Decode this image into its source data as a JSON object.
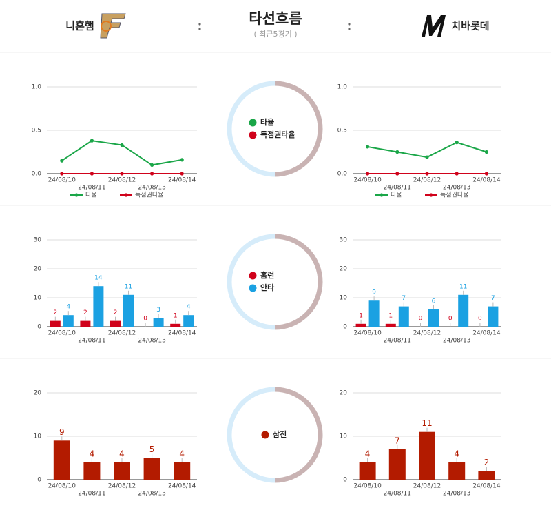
{
  "header": {
    "home": "니혼햄",
    "title": "타선흐름",
    "subtitle": "( 최근5경기 )",
    "away": "치바롯데"
  },
  "chart_data": [
    {
      "type": "line",
      "categories": [
        "24/08/10",
        "24/08/11",
        "24/08/12",
        "24/08/13",
        "24/08/14"
      ],
      "series": [
        {
          "name": "타율",
          "color": "#1aa648",
          "values": [
            0.15,
            0.38,
            0.33,
            0.1,
            0.16
          ]
        },
        {
          "name": "득점권타율",
          "color": "#d0021b",
          "values": [
            0,
            0,
            0,
            0,
            0
          ]
        }
      ],
      "ylim": [
        0,
        1
      ],
      "yticks": [
        {
          "value": 0,
          "label": "0.0"
        },
        {
          "value": 0.5,
          "label": "0.5"
        },
        {
          "value": 1,
          "label": "1.0"
        }
      ],
      "grid": true,
      "legend": "bottom"
    },
    {
      "type": "line",
      "categories": [
        "24/08/10",
        "24/08/11",
        "24/08/12",
        "24/08/13",
        "24/08/14"
      ],
      "series": [
        {
          "name": "타율",
          "color": "#1aa648",
          "values": [
            0.31,
            0.25,
            0.19,
            0.36,
            0.25
          ]
        },
        {
          "name": "득점권타율",
          "color": "#d0021b",
          "values": [
            0,
            0,
            0,
            0,
            0
          ]
        }
      ],
      "ylim": [
        0,
        1
      ],
      "yticks": [
        {
          "value": 0,
          "label": "0.0"
        },
        {
          "value": 0.5,
          "label": "0.5"
        },
        {
          "value": 1,
          "label": "1.0"
        }
      ],
      "grid": true,
      "legend": "bottom"
    },
    {
      "type": "bar",
      "categories": [
        "24/08/10",
        "24/08/11",
        "24/08/12",
        "24/08/13",
        "24/08/14"
      ],
      "series": [
        {
          "name": "홈런",
          "color": "#d0021b",
          "values": [
            2,
            2,
            2,
            0,
            1
          ]
        },
        {
          "name": "안타",
          "color": "#1ba1e2",
          "values": [
            4,
            14,
            11,
            3,
            4
          ]
        }
      ],
      "ylim": [
        0,
        30
      ],
      "yticks": [
        0,
        10,
        20,
        30
      ],
      "grid": true
    },
    {
      "type": "bar",
      "categories": [
        "24/08/10",
        "24/08/11",
        "24/08/12",
        "24/08/13",
        "24/08/14"
      ],
      "series": [
        {
          "name": "홈런",
          "color": "#d0021b",
          "values": [
            1,
            1,
            0,
            0,
            0
          ]
        },
        {
          "name": "안타",
          "color": "#1ba1e2",
          "values": [
            9,
            7,
            6,
            11,
            7
          ]
        }
      ],
      "ylim": [
        0,
        30
      ],
      "yticks": [
        0,
        10,
        20,
        30
      ],
      "grid": true
    },
    {
      "type": "bar",
      "categories": [
        "24/08/10",
        "24/08/11",
        "24/08/12",
        "24/08/13",
        "24/08/14"
      ],
      "series": [
        {
          "name": "삼진",
          "color": "#b31b00",
          "values": [
            9,
            4,
            4,
            5,
            4
          ]
        }
      ],
      "ylim": [
        0,
        20
      ],
      "yticks": [
        0,
        10,
        20
      ],
      "grid": true
    },
    {
      "type": "bar",
      "categories": [
        "24/08/10",
        "24/08/11",
        "24/08/12",
        "24/08/13",
        "24/08/14"
      ],
      "series": [
        {
          "name": "삼진",
          "color": "#b31b00",
          "values": [
            4,
            7,
            11,
            4,
            2
          ]
        }
      ],
      "ylim": [
        0,
        20
      ],
      "yticks": [
        0,
        10,
        20
      ],
      "grid": true
    }
  ]
}
